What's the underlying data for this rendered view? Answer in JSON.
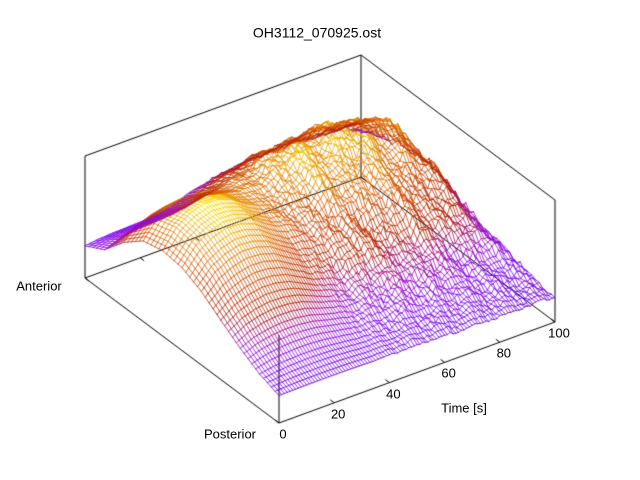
{
  "chart_data": {
    "type": "surface3d",
    "title": "OH3112_070925.ost",
    "x_axis": {
      "label": "Time [s]",
      "min": 0,
      "max": 100,
      "ticks": [
        0,
        20,
        40,
        60,
        80,
        100
      ]
    },
    "y_axis": {
      "anterior_label": "Anterior",
      "posterior_label": "Posterior"
    },
    "z_axis": {
      "ticks": []
    },
    "legend": "none",
    "grid": "off",
    "palette": {
      "name": "pm3d-traditional",
      "stops": [
        [
          0.16,
          "#6601D7"
        ],
        [
          0.25,
          "#7F04FF"
        ],
        [
          0.35,
          "#970BCE"
        ],
        [
          0.45,
          "#AB174F"
        ],
        [
          0.5,
          "#B42000"
        ],
        [
          0.65,
          "#CD4600"
        ],
        [
          0.8,
          "#E48200"
        ],
        [
          0.9,
          "#F2BA00"
        ],
        [
          0.97,
          "#FBE800"
        ]
      ]
    },
    "surface_model": {
      "description": "Wireframe mesh z(time, posterior-to-anterior position); z given as fraction of vertical axis height, reconstructed approximately from the plot. A large smooth ridge (yellow, z≈0.95) peaks near t≈15-25 s at mid-anterior position, decaying into rough mid-height (orange) terrain for t>40 s; posterior edge and anterior early-time valley stay low (violet).",
      "time_samples": 101,
      "position_samples": 51,
      "base": 0.215,
      "ridge_gain": 0.745,
      "time_knots": [
        0,
        5,
        10,
        15,
        20,
        25,
        30,
        35,
        40,
        45,
        50,
        55,
        60,
        65,
        70,
        75,
        80,
        85,
        90,
        95,
        100
      ],
      "ridge_amplitude_vs_time": [
        0.65,
        0.85,
        0.95,
        1.0,
        0.98,
        0.9,
        0.74,
        0.58,
        0.45,
        0.39,
        0.41,
        0.45,
        0.4,
        0.35,
        0.39,
        0.43,
        0.38,
        0.32,
        0.35,
        0.3,
        0.17
      ],
      "ridge_profile_vs_position": [
        0.02,
        0.14,
        0.33,
        0.56,
        0.8,
        0.96,
        1.0,
        0.92,
        0.65,
        0.28,
        0.1
      ],
      "plateau_amplitude_vs_time": [
        0,
        0,
        0,
        0,
        0.01,
        0.04,
        0.1,
        0.2,
        0.3,
        0.36,
        0.4,
        0.42,
        0.43,
        0.44,
        0.45,
        0.45,
        0.44,
        0.43,
        0.43,
        0.39,
        0.25
      ],
      "plateau_profile_vs_position": [
        0.0,
        0.03,
        0.08,
        0.16,
        0.3,
        0.48,
        0.68,
        0.86,
        0.97,
        0.88,
        0.52
      ],
      "roughness": 0.085,
      "z_color_range": [
        0.2,
        0.97
      ]
    }
  }
}
